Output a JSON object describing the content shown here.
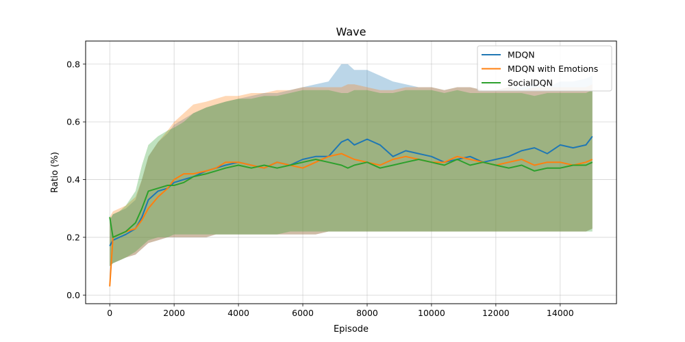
{
  "chart_data": {
    "type": "line",
    "title": "Wave",
    "xlabel": "Episode",
    "ylabel": "Ratio (%)",
    "xlim": [
      -750,
      15750
    ],
    "ylim": [
      -0.03,
      0.88
    ],
    "xticks": [
      0,
      2000,
      4000,
      6000,
      8000,
      10000,
      12000,
      14000
    ],
    "yticks": [
      0.0,
      0.2,
      0.4,
      0.6,
      0.8
    ],
    "xtick_labels": [
      "0",
      "2000",
      "4000",
      "6000",
      "8000",
      "10000",
      "12000",
      "14000"
    ],
    "ytick_labels": [
      "0.0",
      "0.2",
      "0.4",
      "0.6",
      "0.8"
    ],
    "grid": true,
    "legend_position": "top-right",
    "x": [
      0,
      100,
      300,
      500,
      800,
      1000,
      1200,
      1500,
      1800,
      2000,
      2300,
      2600,
      3000,
      3300,
      3600,
      4000,
      4400,
      4800,
      5200,
      5600,
      6000,
      6400,
      6800,
      7200,
      7400,
      7600,
      8000,
      8400,
      8800,
      9200,
      9600,
      10000,
      10400,
      10800,
      11200,
      11600,
      12000,
      12400,
      12800,
      13200,
      13600,
      14000,
      14400,
      14800,
      15000
    ],
    "series": [
      {
        "name": "MDQN",
        "color": "#1f77b4",
        "values": [
          0.17,
          0.19,
          0.2,
          0.21,
          0.23,
          0.27,
          0.33,
          0.36,
          0.37,
          0.39,
          0.4,
          0.41,
          0.43,
          0.44,
          0.45,
          0.46,
          0.45,
          0.44,
          0.46,
          0.45,
          0.47,
          0.48,
          0.48,
          0.53,
          0.54,
          0.52,
          0.54,
          0.52,
          0.48,
          0.5,
          0.49,
          0.48,
          0.46,
          0.47,
          0.48,
          0.46,
          0.47,
          0.48,
          0.5,
          0.51,
          0.49,
          0.52,
          0.51,
          0.52,
          0.55
        ],
        "lower": [
          0.1,
          0.11,
          0.12,
          0.13,
          0.14,
          0.16,
          0.18,
          0.19,
          0.2,
          0.2,
          0.2,
          0.2,
          0.2,
          0.21,
          0.21,
          0.21,
          0.21,
          0.21,
          0.21,
          0.21,
          0.21,
          0.21,
          0.22,
          0.22,
          0.22,
          0.22,
          0.22,
          0.22,
          0.22,
          0.22,
          0.22,
          0.22,
          0.22,
          0.22,
          0.22,
          0.22,
          0.22,
          0.22,
          0.22,
          0.22,
          0.22,
          0.22,
          0.22,
          0.22,
          0.23
        ],
        "upper": [
          0.26,
          0.28,
          0.29,
          0.3,
          0.33,
          0.4,
          0.48,
          0.53,
          0.56,
          0.59,
          0.61,
          0.63,
          0.65,
          0.66,
          0.67,
          0.68,
          0.69,
          0.7,
          0.7,
          0.71,
          0.72,
          0.73,
          0.74,
          0.8,
          0.8,
          0.78,
          0.78,
          0.76,
          0.74,
          0.73,
          0.72,
          0.72,
          0.71,
          0.72,
          0.72,
          0.71,
          0.71,
          0.72,
          0.72,
          0.73,
          0.72,
          0.74,
          0.74,
          0.75,
          0.76
        ]
      },
      {
        "name": "MDQN with Emotions",
        "color": "#ff7f0e",
        "values": [
          0.03,
          0.2,
          0.21,
          0.22,
          0.23,
          0.26,
          0.3,
          0.34,
          0.37,
          0.4,
          0.42,
          0.42,
          0.43,
          0.44,
          0.46,
          0.46,
          0.45,
          0.44,
          0.46,
          0.45,
          0.44,
          0.46,
          0.48,
          0.49,
          0.48,
          0.47,
          0.46,
          0.45,
          0.47,
          0.48,
          0.47,
          0.46,
          0.46,
          0.48,
          0.47,
          0.46,
          0.45,
          0.46,
          0.47,
          0.45,
          0.46,
          0.46,
          0.45,
          0.46,
          0.47
        ],
        "lower": [
          0.1,
          0.11,
          0.12,
          0.13,
          0.14,
          0.16,
          0.18,
          0.19,
          0.2,
          0.2,
          0.2,
          0.2,
          0.2,
          0.21,
          0.21,
          0.21,
          0.21,
          0.21,
          0.21,
          0.21,
          0.21,
          0.21,
          0.22,
          0.22,
          0.22,
          0.22,
          0.22,
          0.22,
          0.22,
          0.22,
          0.22,
          0.22,
          0.22,
          0.22,
          0.22,
          0.22,
          0.22,
          0.22,
          0.22,
          0.22,
          0.22,
          0.22,
          0.22,
          0.22,
          0.23
        ],
        "upper": [
          0.27,
          0.29,
          0.3,
          0.31,
          0.34,
          0.4,
          0.48,
          0.53,
          0.57,
          0.6,
          0.63,
          0.66,
          0.67,
          0.68,
          0.69,
          0.69,
          0.7,
          0.7,
          0.71,
          0.71,
          0.72,
          0.72,
          0.72,
          0.72,
          0.73,
          0.73,
          0.72,
          0.71,
          0.71,
          0.72,
          0.72,
          0.72,
          0.71,
          0.72,
          0.72,
          0.71,
          0.71,
          0.72,
          0.71,
          0.72,
          0.72,
          0.72,
          0.72,
          0.72,
          0.73
        ]
      },
      {
        "name": "SocialDQN",
        "color": "#2ca02c",
        "values": [
          0.27,
          0.2,
          0.21,
          0.22,
          0.25,
          0.3,
          0.36,
          0.37,
          0.38,
          0.38,
          0.39,
          0.41,
          0.42,
          0.43,
          0.44,
          0.45,
          0.44,
          0.45,
          0.44,
          0.45,
          0.46,
          0.47,
          0.46,
          0.45,
          0.44,
          0.45,
          0.46,
          0.44,
          0.45,
          0.46,
          0.47,
          0.46,
          0.45,
          0.47,
          0.45,
          0.46,
          0.45,
          0.44,
          0.45,
          0.43,
          0.44,
          0.44,
          0.45,
          0.45,
          0.46
        ],
        "lower": [
          0.1,
          0.11,
          0.12,
          0.13,
          0.15,
          0.17,
          0.19,
          0.2,
          0.2,
          0.21,
          0.21,
          0.21,
          0.21,
          0.21,
          0.21,
          0.21,
          0.21,
          0.21,
          0.21,
          0.22,
          0.22,
          0.22,
          0.22,
          0.22,
          0.22,
          0.22,
          0.22,
          0.22,
          0.22,
          0.22,
          0.22,
          0.22,
          0.22,
          0.22,
          0.22,
          0.22,
          0.22,
          0.22,
          0.22,
          0.22,
          0.22,
          0.22,
          0.22,
          0.22,
          0.22
        ],
        "upper": [
          0.26,
          0.28,
          0.29,
          0.31,
          0.36,
          0.45,
          0.52,
          0.55,
          0.57,
          0.58,
          0.6,
          0.63,
          0.65,
          0.66,
          0.67,
          0.68,
          0.68,
          0.69,
          0.69,
          0.7,
          0.71,
          0.71,
          0.71,
          0.7,
          0.7,
          0.71,
          0.71,
          0.7,
          0.7,
          0.71,
          0.71,
          0.71,
          0.7,
          0.71,
          0.7,
          0.7,
          0.7,
          0.7,
          0.7,
          0.69,
          0.7,
          0.7,
          0.7,
          0.7,
          0.71
        ]
      }
    ]
  }
}
